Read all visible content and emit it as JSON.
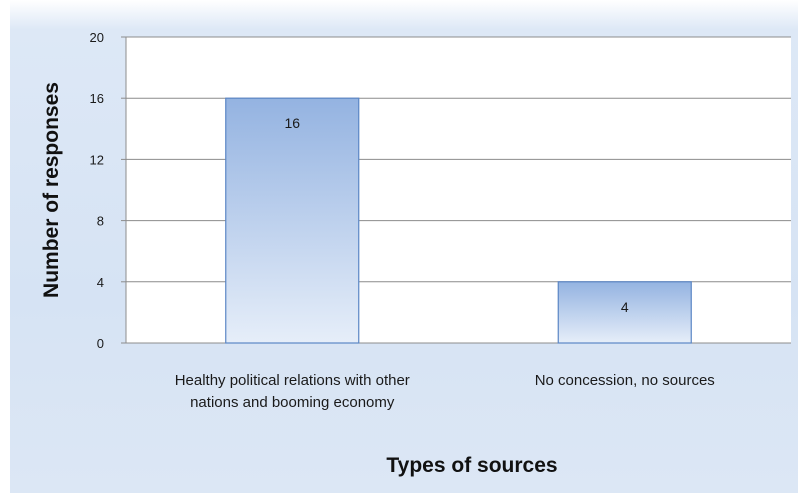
{
  "chart_data": {
    "type": "bar",
    "categories": [
      [
        "Healthy political relations with other",
        "nations and booming economy"
      ],
      [
        "No concession, no sources"
      ]
    ],
    "values": [
      16,
      4
    ],
    "data_labels": [
      "16",
      "4"
    ],
    "title": "",
    "xlabel": "Types of sources",
    "ylabel": "Number of responses",
    "ylim": [
      0,
      20
    ],
    "yticks": [
      "0",
      "4",
      "8",
      "12",
      "16",
      "20"
    ],
    "grid": true,
    "legend": "none",
    "colors": {
      "bar_top": "#94b3e1",
      "bar_bottom": "#e6eef9",
      "bar_edge": "#5b86c5",
      "plot_bg": "#ffffff",
      "gridline": "#8c8c8c"
    }
  }
}
